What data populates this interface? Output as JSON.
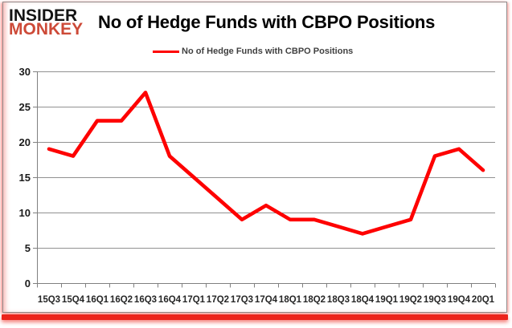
{
  "brand": {
    "line1": "INSIDER",
    "line2": "MONKEY"
  },
  "header": {
    "title": "No of Hedge Funds with CBPO Positions"
  },
  "legend": {
    "label": "No of Hedge Funds with CBPO Positions"
  },
  "chart_data": {
    "type": "line",
    "title": "No of Hedge Funds with CBPO Positions",
    "categories": [
      "15Q3",
      "15Q4",
      "16Q1",
      "16Q2",
      "16Q3",
      "16Q4",
      "17Q1",
      "17Q2",
      "17Q3",
      "17Q4",
      "18Q1",
      "18Q2",
      "18Q3",
      "18Q4",
      "19Q1",
      "19Q2",
      "19Q3",
      "19Q4",
      "20Q1"
    ],
    "series": [
      {
        "name": "No of Hedge Funds with CBPO Positions",
        "color": "#fe0000",
        "values": [
          19,
          18,
          23,
          23,
          27,
          18,
          15,
          12,
          9,
          11,
          9,
          9,
          8,
          7,
          8,
          9,
          18,
          19,
          16
        ]
      }
    ],
    "xlabel": "",
    "ylabel": "",
    "ylim": [
      0,
      30
    ],
    "yticks": [
      0,
      5,
      10,
      15,
      20,
      25,
      30
    ],
    "grid": "horizontal",
    "legend_position": "top-center"
  },
  "colors": {
    "series_red": "#fe0000",
    "logo_black": "#141414",
    "logo_red": "#cd4a38",
    "frame_red": "#ec231b",
    "grid": "#919191",
    "axis": "#808080",
    "border": "#8f8f8f"
  }
}
